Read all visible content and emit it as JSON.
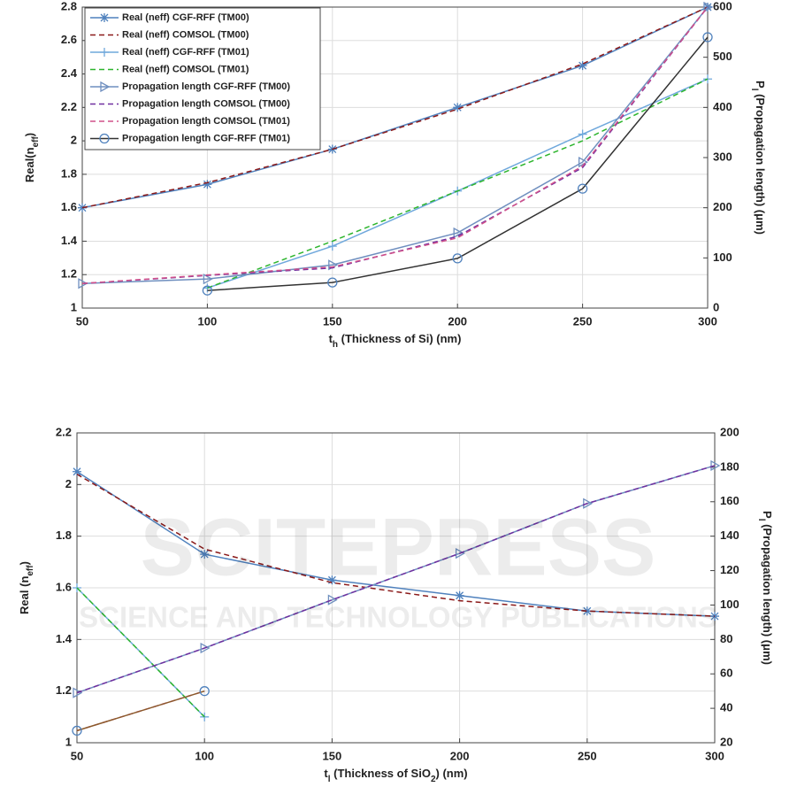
{
  "chart_data": [
    {
      "type": "line",
      "x": [
        50,
        100,
        150,
        200,
        250,
        300
      ],
      "xlim": [
        50,
        300
      ],
      "xticks": [
        50,
        100,
        150,
        200,
        250,
        300
      ],
      "ylim": [
        1,
        2.8
      ],
      "yticks": [
        1,
        1.2,
        1.4,
        1.6,
        1.8,
        2,
        2.2,
        2.4,
        2.6,
        2.8
      ],
      "y2lim": [
        0,
        600
      ],
      "y2ticks": [
        0,
        100,
        200,
        300,
        400,
        500,
        600
      ],
      "xlabel": [
        "t",
        "h",
        " (Thickness of Si) (nm)"
      ],
      "ylabel": [
        "Real(n",
        "eff",
        ")"
      ],
      "y2label": [
        "P",
        "l",
        " (Propagation length) (μm)"
      ],
      "grid": true,
      "legend": "upper left",
      "series": [
        {
          "name": "Real (neff) CGF-RFF (TM00)",
          "color": "#4f81bd",
          "marker": "star",
          "values": [
            1.6,
            1.74,
            1.95,
            2.2,
            2.45,
            2.8
          ]
        },
        {
          "name": "Real (neff) COMSOL (TM00)",
          "color": "#8b1a1a",
          "dashed": true,
          "values": [
            1.6,
            1.75,
            1.95,
            2.19,
            2.46,
            2.8
          ]
        },
        {
          "name": "Real (neff) CGF-RFF (TM01)",
          "color": "#6fa8dc",
          "marker": "plus",
          "values": [
            null,
            1.12,
            1.37,
            1.7,
            2.04,
            2.37
          ]
        },
        {
          "name": "Real (neff) COMSOL (TM01)",
          "color": "#2db52d",
          "dashed": true,
          "values": [
            null,
            1.12,
            1.4,
            1.7,
            2.0,
            2.37
          ]
        },
        {
          "name": "Propagation length CGF-RFF (TM00)",
          "color": "#6f8fbf",
          "marker": "triangle",
          "axis": "y2",
          "values": [
            49,
            58,
            86,
            150,
            291,
            600
          ]
        },
        {
          "name": "Propagation length COMSOL (TM00)",
          "color": "#7030a0",
          "dashed": true,
          "axis": "y2",
          "values": [
            49,
            65,
            80,
            143,
            280,
            600
          ]
        },
        {
          "name": "Propagation length COMSOL (TM01)",
          "color": "#d0508a",
          "dashed": true,
          "axis": "y2",
          "values": [
            49,
            66,
            82,
            140,
            283,
            600
          ]
        },
        {
          "name": "Propagation length CGF-RFF (TM01)",
          "color": "#333333",
          "marker": "circle",
          "axis": "y2",
          "values": [
            null,
            35,
            51,
            99,
            238,
            540
          ]
        }
      ]
    },
    {
      "type": "line",
      "x": [
        50,
        100,
        150,
        200,
        250,
        300
      ],
      "xlim": [
        50,
        300
      ],
      "xticks": [
        50,
        100,
        150,
        200,
        250,
        300
      ],
      "ylim": [
        1,
        2.2
      ],
      "yticks": [
        1,
        1.2,
        1.4,
        1.6,
        1.8,
        2,
        2.2
      ],
      "y2lim": [
        20,
        200
      ],
      "y2ticks": [
        20,
        40,
        60,
        80,
        100,
        120,
        140,
        160,
        180,
        200
      ],
      "xlabel": [
        "t",
        "l",
        " (Thickness of SiO",
        "2",
        ") (nm)"
      ],
      "ylabel": [
        "Real (n",
        "eff",
        ")"
      ],
      "y2label": [
        "P",
        "l",
        " (Propagation length) (μm)"
      ],
      "grid": true,
      "series": [
        {
          "color": "#4f81bd",
          "marker": "star",
          "values": [
            2.05,
            1.73,
            1.63,
            1.57,
            1.51,
            1.49
          ]
        },
        {
          "color": "#8b1a1a",
          "dashed": true,
          "values": [
            2.04,
            1.75,
            1.62,
            1.55,
            1.51,
            1.49
          ]
        },
        {
          "color": "#6fa8dc",
          "marker": "plus",
          "values": [
            1.6,
            1.1,
            null,
            null,
            null,
            null
          ]
        },
        {
          "color": "#2db52d",
          "dashed": true,
          "values": [
            1.6,
            1.1,
            null,
            null,
            null,
            null
          ]
        },
        {
          "color": "#6f8fbf",
          "marker": "triangle",
          "axis": "y2",
          "values": [
            49,
            75,
            103,
            130,
            159,
            181
          ]
        },
        {
          "color": "#7030a0",
          "dashed": true,
          "axis": "y2",
          "values": [
            49,
            75,
            103,
            130,
            159,
            181
          ]
        },
        {
          "color": "#d0508a",
          "dashed": true,
          "axis": "y2",
          "values": [
            27,
            50,
            null,
            null,
            null,
            null
          ]
        },
        {
          "color": "#8b5a2b",
          "marker": "circle",
          "axis": "y2",
          "values": [
            27,
            50,
            null,
            null,
            null,
            null
          ]
        }
      ]
    }
  ],
  "watermark": {
    "title": "SCITEPRESS",
    "subtitle": "SCIENCE AND TECHNOLOGY PUBLICATIONS"
  }
}
